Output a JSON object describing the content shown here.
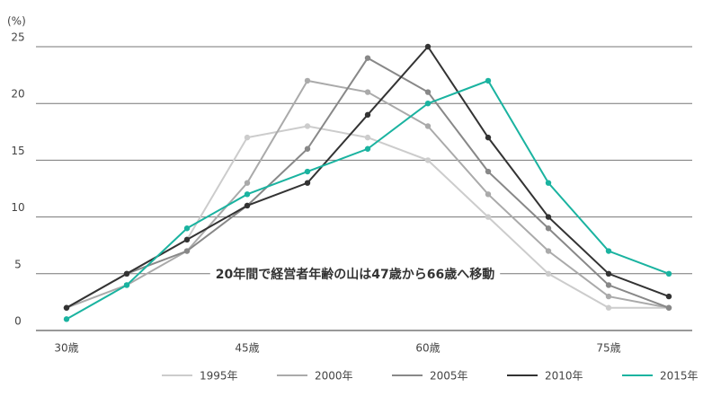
{
  "chart_data": {
    "type": "line",
    "unit_label": "(%)",
    "annotation": "20年間で経営者年齢の山は47歳から66歳へ移動",
    "categories": [
      "30歳",
      null,
      null,
      "45歳",
      null,
      null,
      "60歳",
      null,
      null,
      "75歳",
      null
    ],
    "ylim": [
      0,
      25
    ],
    "yticks": [
      0,
      5,
      10,
      15,
      20,
      25
    ],
    "grid": true,
    "legend": "bottom",
    "series": [
      {
        "name": "1995年",
        "color": "#cccccc",
        "values": [
          2,
          5,
          8,
          17,
          18,
          17,
          15,
          10,
          5,
          2,
          2
        ]
      },
      {
        "name": "2000年",
        "color": "#aaaaaa",
        "values": [
          2,
          4,
          7,
          13,
          22,
          21,
          18,
          12,
          7,
          3,
          2
        ]
      },
      {
        "name": "2005年",
        "color": "#888888",
        "values": [
          2,
          5,
          7,
          11,
          16,
          24,
          21,
          14,
          9,
          4,
          2
        ]
      },
      {
        "name": "2010年",
        "color": "#333333",
        "values": [
          2,
          5,
          8,
          11,
          13,
          19,
          25,
          17,
          10,
          5,
          3
        ]
      },
      {
        "name": "2015年",
        "color": "#1ab3a0",
        "values": [
          1,
          4,
          9,
          12,
          14,
          16,
          20,
          22,
          13,
          7,
          5
        ]
      }
    ]
  }
}
